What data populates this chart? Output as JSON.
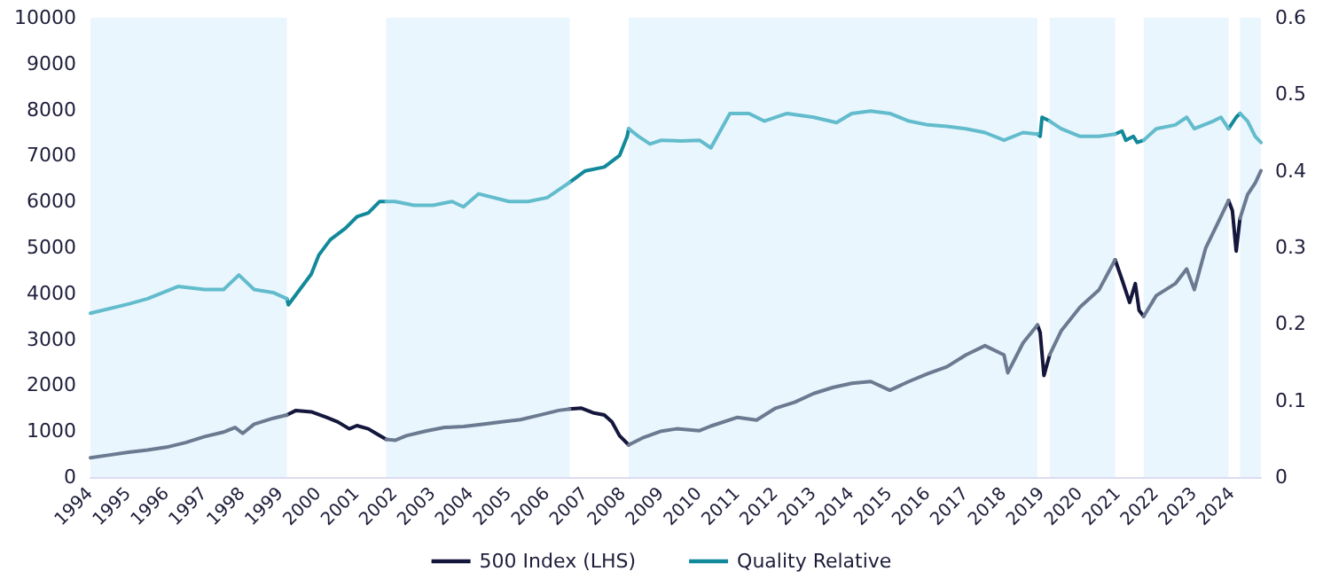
{
  "chart_data": {
    "type": "line",
    "marker": "none",
    "line_style": "solid",
    "grid": false,
    "legend": "bottom",
    "xlim": [
      1994,
      2024.75
    ],
    "xticks": [
      1994,
      1995,
      1996,
      1997,
      1998,
      1999,
      2000,
      2001,
      2002,
      2003,
      2004,
      2005,
      2006,
      2007,
      2008,
      2009,
      2010,
      2011,
      2012,
      2013,
      2014,
      2015,
      2016,
      2017,
      2018,
      2019,
      2020,
      2021,
      2022,
      2023,
      2024
    ],
    "ylim": [
      0,
      10000
    ],
    "yticks": [
      0,
      1000,
      2000,
      3000,
      4000,
      5000,
      6000,
      7000,
      8000,
      9000,
      10000
    ],
    "y2lim": [
      0,
      0.6
    ],
    "y2ticks": [
      0,
      0.1,
      0.2,
      0.3,
      0.4,
      0.5,
      0.6
    ],
    "bands": [
      {
        "axis": "x",
        "from": 1994,
        "to": 1999.16,
        "color": "#eaf6fe"
      },
      {
        "axis": "x",
        "from": 2001.77,
        "to": 2006.59,
        "color": "#eaf6fe"
      },
      {
        "axis": "x",
        "from": 2008.14,
        "to": 2018.88,
        "color": "#eaf6fe"
      },
      {
        "axis": "x",
        "from": 2019.2,
        "to": 2020.92,
        "color": "#eaf6fe"
      },
      {
        "axis": "x",
        "from": 2021.67,
        "to": 2023.9,
        "color": "#eaf6fe"
      },
      {
        "axis": "x",
        "from": 2024.2,
        "to": 2024.75,
        "color": "#eaf6fe"
      }
    ],
    "series": [
      {
        "name": "500 Index (LHS)",
        "color": "#14163c",
        "x": [
          1999.16,
          1999.4,
          1999.8,
          2000.2,
          2000.5,
          2000.8,
          2001.0,
          2001.3,
          2001.5,
          2001.77,
          2004,
          2006.59,
          2006.9,
          2007.2,
          2007.5,
          2007.7,
          2007.9,
          2008.14,
          2013,
          2018.88,
          2018.95,
          2019.05,
          2019.2,
          2020,
          2020.92,
          2021.1,
          2021.3,
          2021.45,
          2021.55,
          2021.67,
          2023,
          2023.9,
          2024.0,
          2024.1,
          2024.2
        ],
        "values": [
          1350,
          1450,
          1420,
          1300,
          1200,
          1050,
          1120,
          1050,
          950,
          820,
          null,
          1480,
          1500,
          1400,
          1350,
          1200,
          900,
          700,
          null,
          3310,
          3150,
          2210,
          2660,
          null,
          4730,
          4300,
          3800,
          4210,
          3630,
          3500,
          null,
          6020,
          5800,
          4920,
          5630
        ]
      },
      {
        "color": "#6b7a90",
        "x": [
          1994.0,
          1994.5,
          1995,
          1995.5,
          1996,
          1996.5,
          1997,
          1997.5,
          1997.8,
          1998.0,
          1998.3,
          1998.8,
          1999.16,
          2000,
          2001.77,
          2002.0,
          2002.3,
          2002.8,
          2003.3,
          2003.8,
          2004.3,
          2004.8,
          2005.3,
          2005.8,
          2006.3,
          2006.59,
          2007,
          2008.14,
          2008.5,
          2009,
          2009.4,
          2010,
          2010.3,
          2011,
          2011.5,
          2012,
          2012.5,
          2013,
          2013.5,
          2014,
          2014.5,
          2015,
          2015.5,
          2016,
          2016.5,
          2017,
          2017.5,
          2018,
          2018.1,
          2018.5,
          2018.88,
          2019,
          2019.2,
          2019.5,
          2020,
          2020.5,
          2020.92,
          2021.3,
          2021.67,
          2022,
          2022.5,
          2022.8,
          2023,
          2023.3,
          2023.6,
          2023.9,
          2024.05,
          2024.2,
          2024.4,
          2024.6,
          2024.75
        ],
        "values": [
          420,
          480,
          540,
          590,
          650,
          750,
          880,
          980,
          1080,
          950,
          1150,
          1280,
          1350,
          null,
          820,
          800,
          900,
          1000,
          1080,
          1100,
          1150,
          1200,
          1250,
          1350,
          1450,
          1480,
          null,
          700,
          850,
          1000,
          1050,
          1010,
          1110,
          1300,
          1240,
          1500,
          1630,
          1820,
          1950,
          2040,
          2080,
          1890,
          2080,
          2250,
          2400,
          2660,
          2860,
          2660,
          2270,
          2920,
          3310,
          null,
          2660,
          3180,
          3700,
          4080,
          4730,
          null,
          3500,
          3950,
          4210,
          4530,
          4080,
          4990,
          5500,
          6020,
          null,
          5630,
          6150,
          6400,
          6670
        ]
      },
      {
        "name": "Quality Relative",
        "color": "#12899a",
        "axis": "y2",
        "x": [
          1999.16,
          1999.2,
          1999.5,
          1999.8,
          2000,
          2000.3,
          2000.7,
          2001,
          2001.3,
          2001.6,
          2001.77,
          2004,
          2006.59,
          2007,
          2007.5,
          2007.9,
          2008.1,
          2008.14,
          2013,
          2018.88,
          2018.95,
          2019.0,
          2019.2,
          2020,
          2020.92,
          2021.1,
          2021.2,
          2021.4,
          2021.5,
          2021.67,
          2023,
          2023.9,
          2024.1,
          2024.2
        ],
        "values": [
          0.233,
          0.225,
          0.245,
          0.265,
          0.29,
          0.31,
          0.325,
          0.34,
          0.345,
          0.36,
          0.36,
          null,
          0.385,
          0.4,
          0.405,
          0.42,
          0.445,
          0.455,
          null,
          0.448,
          0.445,
          0.47,
          0.465,
          null,
          0.448,
          0.452,
          0.44,
          0.445,
          0.437,
          0.44,
          null,
          0.455,
          0.47,
          0.475
        ]
      },
      {
        "color": "#62bccc",
        "axis": "y2",
        "x": [
          1994,
          1995,
          1995.5,
          1996.3,
          1997,
          1997.5,
          1997.9,
          1998.3,
          1998.8,
          1999.16,
          2000,
          2001.77,
          2002,
          2002.5,
          2003,
          2003.5,
          2003.8,
          2004.2,
          2005,
          2005.5,
          2006,
          2006.59,
          2007,
          2008.14,
          2008.4,
          2008.7,
          2009,
          2009.5,
          2010,
          2010.3,
          2010.8,
          2011.3,
          2011.7,
          2012.3,
          2013,
          2013.6,
          2014,
          2014.5,
          2015,
          2015.5,
          2016,
          2016.5,
          2017,
          2017.5,
          2018,
          2018.5,
          2018.88,
          2019,
          2019.2,
          2019.5,
          2020,
          2020.5,
          2020.92,
          2021.3,
          2021.67,
          2022,
          2022.5,
          2022.8,
          2023,
          2023.5,
          2023.7,
          2023.9,
          2024.05,
          2024.2,
          2024.4,
          2024.6,
          2024.75
        ],
        "values": [
          0.214,
          0.226,
          0.233,
          0.249,
          0.245,
          0.245,
          0.264,
          0.245,
          0.241,
          0.233,
          null,
          0.36,
          0.36,
          0.355,
          0.355,
          0.36,
          0.353,
          0.37,
          0.36,
          0.36,
          0.365,
          0.385,
          null,
          0.455,
          0.445,
          0.435,
          0.44,
          0.439,
          0.44,
          0.43,
          0.475,
          0.475,
          0.465,
          0.475,
          0.47,
          0.463,
          0.475,
          0.478,
          0.475,
          0.465,
          0.46,
          0.458,
          0.455,
          0.45,
          0.44,
          0.45,
          0.448,
          null,
          0.465,
          0.455,
          0.445,
          0.445,
          0.448,
          null,
          0.44,
          0.455,
          0.46,
          0.47,
          0.455,
          0.465,
          0.47,
          0.455,
          null,
          0.475,
          0.465,
          0.445,
          0.437
        ]
      }
    ]
  }
}
